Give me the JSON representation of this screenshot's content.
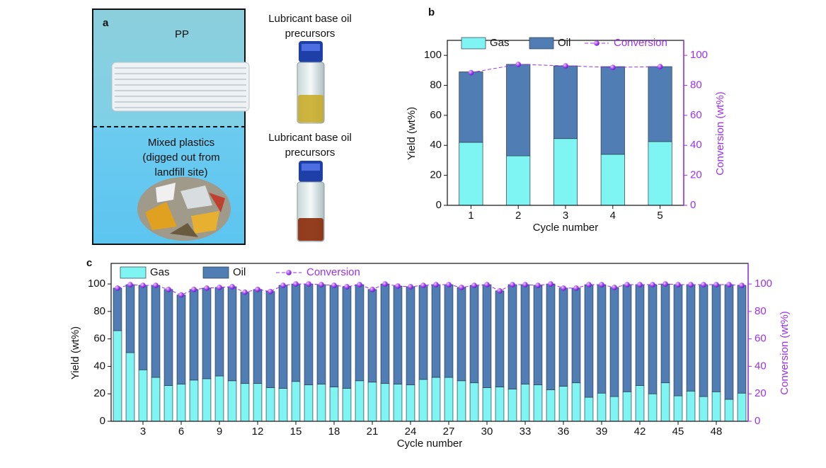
{
  "panel_a": {
    "label": "a",
    "top": {
      "material": [
        "PP"
      ],
      "product": [
        "Lubricant base oil",
        "precursors"
      ]
    },
    "bottom": {
      "material": [
        "Mixed plastics",
        "(digged out from",
        "landfill site)"
      ],
      "product": [
        "Lubricant base oil",
        "precursors"
      ]
    }
  },
  "chart_data": [
    {
      "type": "stacked_bar_line",
      "label": "b",
      "x_label": "Cycle number",
      "y_label": "Yield (wt%)",
      "y2_label": "Conversion (wt%)",
      "categories": [
        "1",
        "2",
        "3",
        "4",
        "5"
      ],
      "series": [
        {
          "name": "Gas",
          "color": "#7ff5f3",
          "values": [
            42,
            33,
            44.5,
            34,
            42.5
          ]
        },
        {
          "name": "Oil",
          "color": "#4f7db4",
          "values": [
            47,
            61,
            48.5,
            58.5,
            50
          ]
        },
        {
          "name": "Conversion",
          "color": "#9b30f0",
          "axis": "y2",
          "values": [
            88.5,
            94,
            93,
            92,
            92.5
          ]
        }
      ],
      "ylim": [
        0,
        110
      ],
      "yticks": [
        0,
        20,
        40,
        60,
        80,
        100
      ],
      "y2lim": [
        0,
        110
      ],
      "y2ticks": [
        0,
        20,
        40,
        60,
        80,
        100
      ],
      "legend": "top"
    },
    {
      "type": "stacked_bar_line",
      "label": "c",
      "x_label": "Cycle number",
      "y_label": "Yield (wt%)",
      "y2_label": "Conversion (wt%)",
      "categories": [
        null,
        null,
        "3",
        null,
        null,
        "6",
        null,
        null,
        "9",
        null,
        null,
        "12",
        null,
        null,
        "15",
        null,
        null,
        "18",
        null,
        null,
        "21",
        null,
        null,
        "24",
        null,
        null,
        "27",
        null,
        null,
        "30",
        null,
        null,
        "33",
        null,
        null,
        "36",
        null,
        null,
        "39",
        null,
        null,
        "42",
        null,
        null,
        "45",
        null,
        null,
        "48",
        null,
        null
      ],
      "series": [
        {
          "name": "Gas",
          "color": "#7ff5f3",
          "values": [
            66,
            50,
            37.5,
            32,
            26,
            27,
            30,
            31,
            33,
            29.5,
            27.5,
            27.5,
            24.5,
            24,
            29,
            26.5,
            27,
            25,
            24,
            29.5,
            28.5,
            27.5,
            27,
            26.5,
            30.5,
            32,
            32,
            29.5,
            28,
            24.5,
            25,
            23.5,
            27,
            26.5,
            23,
            25.5,
            28,
            17.5,
            20.5,
            18,
            21.5,
            26,
            20,
            28,
            18.5,
            22,
            18,
            21.5,
            16,
            20.5
          ]
        },
        {
          "name": "Oil",
          "color": "#4f7db4",
          "values": [
            31,
            49.5,
            61.5,
            67,
            70,
            65,
            66,
            66,
            64.5,
            68.5,
            66.5,
            68.5,
            70,
            75,
            71,
            73.5,
            72.5,
            74,
            74,
            70,
            67.5,
            72.5,
            71.5,
            71.5,
            68.5,
            67.5,
            67.5,
            68,
            71,
            75,
            70,
            76,
            72.5,
            72.5,
            77,
            71.5,
            69,
            82,
            79,
            79.5,
            78,
            73.5,
            79.5,
            72,
            81,
            77.5,
            81.5,
            78,
            83.5,
            78.5
          ]
        },
        {
          "name": "Conversion",
          "color": "#9b30f0",
          "axis": "y2",
          "values": [
            97,
            99.5,
            99,
            99,
            96,
            92,
            96,
            97,
            97.5,
            98,
            94,
            96,
            94.5,
            99,
            100,
            100,
            99.5,
            99,
            98,
            99.5,
            96,
            100,
            98.5,
            98,
            99,
            99.5,
            99.5,
            97.5,
            99,
            99.5,
            95,
            99.5,
            99.5,
            99,
            100,
            97,
            97,
            99.5,
            99.5,
            97.5,
            99.5,
            99.5,
            99.5,
            100,
            99.5,
            99.5,
            99.5,
            99.5,
            99.5,
            99
          ]
        }
      ],
      "ylim": [
        0,
        115
      ],
      "yticks": [
        0,
        20,
        40,
        60,
        80,
        100
      ],
      "y2lim": [
        0,
        115
      ],
      "y2ticks": [
        0,
        20,
        40,
        60,
        80,
        100
      ],
      "legend": "top"
    }
  ]
}
